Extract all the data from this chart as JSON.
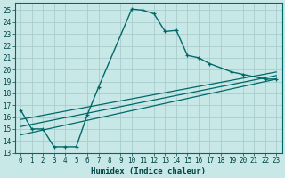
{
  "title": "",
  "xlabel": "Humidex (Indice chaleur)",
  "background_color": "#c8e8e8",
  "grid_color": "#a8cccc",
  "line_color": "#006868",
  "xlim": [
    -0.5,
    23.5
  ],
  "ylim": [
    13,
    25.6
  ],
  "xticks": [
    0,
    1,
    2,
    3,
    4,
    5,
    6,
    7,
    8,
    9,
    10,
    11,
    12,
    13,
    14,
    15,
    16,
    17,
    18,
    19,
    20,
    21,
    22,
    23
  ],
  "yticks": [
    13,
    14,
    15,
    16,
    17,
    18,
    19,
    20,
    21,
    22,
    23,
    24,
    25
  ],
  "curve1_x": [
    0,
    1,
    2,
    3,
    4,
    5,
    6,
    7,
    10,
    11,
    12,
    13,
    14,
    15,
    16,
    17,
    19,
    20,
    22,
    23
  ],
  "curve1_y": [
    16.6,
    15.0,
    15.0,
    13.5,
    13.5,
    13.5,
    16.2,
    18.5,
    25.1,
    25.0,
    24.7,
    23.2,
    23.3,
    21.2,
    21.0,
    20.5,
    19.8,
    19.6,
    19.2,
    19.2
  ],
  "line2_x": [
    0,
    23
  ],
  "line2_y": [
    14.5,
    19.2
  ],
  "line3_x": [
    0,
    23
  ],
  "line3_y": [
    15.2,
    19.5
  ],
  "line4_x": [
    0,
    23
  ],
  "line4_y": [
    15.8,
    19.8
  ]
}
